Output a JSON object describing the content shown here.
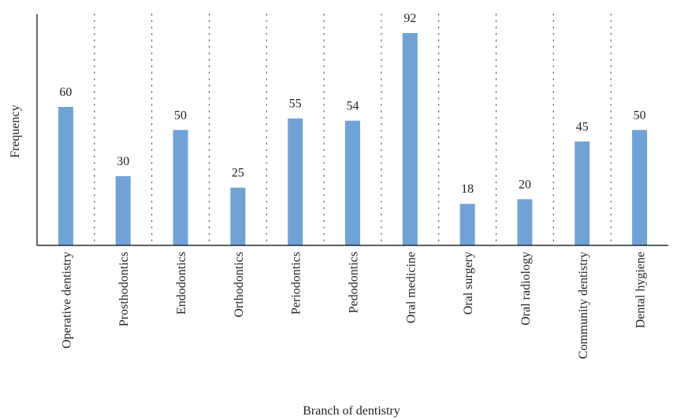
{
  "chart_data": {
    "type": "bar",
    "title": "",
    "xlabel": "Branch of dentistry",
    "ylabel": "Frequency",
    "categories": [
      "Operative dentistry",
      "Prosthodontics",
      "Endodontics",
      "Orthodontics",
      "Periodontics",
      "Pedodontics",
      "Oral medicine",
      "Oral surgery",
      "Oral radiology",
      "Community dentistry",
      "Dental hygiene"
    ],
    "values": [
      60,
      30,
      50,
      25,
      55,
      54,
      92,
      18,
      20,
      45,
      50
    ],
    "ylim": [
      0,
      92
    ],
    "grid": "vertical dotted separators between categories",
    "legend": "none",
    "bar_color": "#6fa3d8",
    "axis_color": "#000000",
    "grid_color": "#555555"
  }
}
